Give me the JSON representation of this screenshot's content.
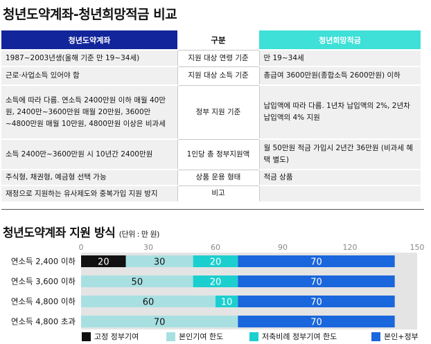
{
  "title": "청년도약계좌-청년희망적금 비교",
  "table": {
    "headers": [
      "청년도약계좌",
      "구분",
      "청년희망적금"
    ],
    "rows": [
      {
        "left": "1987~2003년생(올해 기준 만 19~34세)",
        "mid": "지원 대상 연령 기준",
        "right": "만 19~34세"
      },
      {
        "left": "근로·사업소득 있어야 함",
        "mid": "지원 대상 소득 기준",
        "right": "총급여 3600만원(종합소득 2600만원) 이하"
      },
      {
        "left": "소득에 따라 다름. 연소득 2400만원 이하 매월 40만원, 2400만~3600만원 매월 20만원, 3600만~4800만원 매월 10만원, 4800만원 이상은 비과세",
        "mid": "정부 지원 기준",
        "right": "납입액에 따라 다름. 1년차 납입액의 2%, 2년차 납입액의 4% 지원"
      },
      {
        "left": "소득 2400만~3600만원 시 10년간 2400만원",
        "mid": "1인당 총 정부지원액",
        "right": "월 50만원 적금 가입시 2년간 36만원 (비과세 혜택 별도)"
      },
      {
        "left": "주식형, 채권형, 예금형 선택 가능",
        "mid": "상품 운용 형태",
        "right": "적금 상품"
      },
      {
        "left": "재정으로 지원하는 유사제도와 중복가입 지원 방지",
        "mid": "비고",
        "right": ""
      }
    ]
  },
  "chart_title": "청년도약계좌 지원 방식",
  "chart_unit": "(단위 : 만 원)",
  "chart_data": {
    "type": "bar",
    "orientation": "horizontal",
    "stacked": true,
    "title": "청년도약계좌 지원 방식",
    "unit": "(단위 : 만 원)",
    "xlim": [
      0,
      150
    ],
    "xticks": [
      0,
      30,
      60,
      90,
      120,
      150
    ],
    "categories": [
      "연소득 2,400 이하",
      "연소득 3,600 이하",
      "연소득 4,800 이하",
      "연소득 4,800 초과"
    ],
    "series": [
      {
        "name": "고정 정부기여",
        "color": "#111111",
        "label_color": "#ffffff",
        "values": [
          20,
          0,
          0,
          0
        ]
      },
      {
        "name": "본인기여 한도",
        "color": "#a8e0e2",
        "label_color": "#111111",
        "values": [
          30,
          50,
          60,
          70
        ]
      },
      {
        "name": "저축비례 정부기여 한도",
        "color": "#1ccfcf",
        "label_color": "#ffffff",
        "values": [
          20,
          20,
          10,
          0
        ]
      },
      {
        "name": "본인+정부",
        "color": "#1a66dc",
        "label_color": "#ffffff",
        "values": [
          70,
          70,
          70,
          70
        ]
      }
    ],
    "background_color": "#e4e4e4"
  }
}
